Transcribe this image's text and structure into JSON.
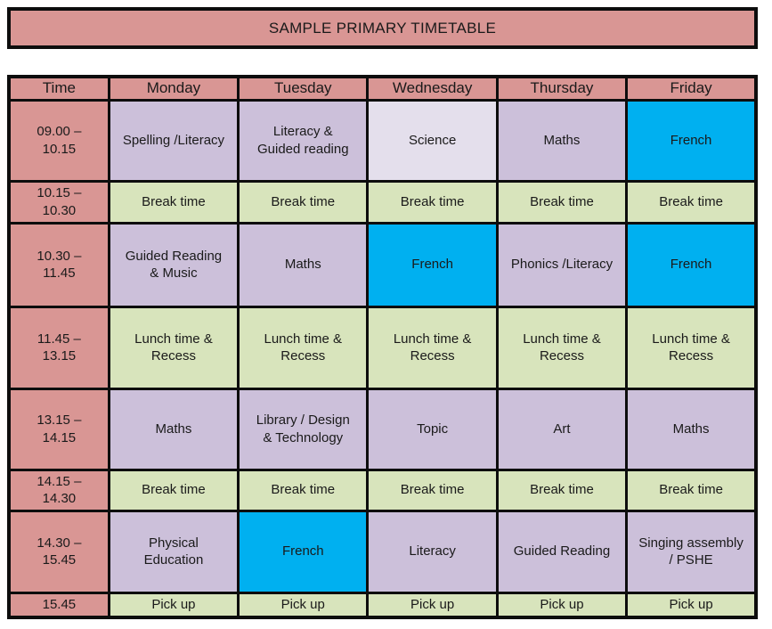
{
  "title": "SAMPLE PRIMARY TIMETABLE",
  "colors": {
    "header_bg": "#d99694",
    "time_bg": "#d99694",
    "lesson_bg": "#ccc0da",
    "lesson_light_bg": "#e4dfec",
    "break_bg": "#d8e4bc",
    "french_bg": "#00b0f0",
    "border": "#0d0d0d",
    "text": "#1a1a1a"
  },
  "table": {
    "columns": [
      "Time",
      "Monday",
      "Tuesday",
      "Wednesday",
      "Thursday",
      "Friday"
    ],
    "rows": [
      {
        "time": "09.00 –\n10.15",
        "cells": [
          {
            "text": "Spelling /Literacy",
            "type": "lesson"
          },
          {
            "text": "Literacy &\nGuided reading",
            "type": "lesson"
          },
          {
            "text": "Science",
            "type": "lesson-light"
          },
          {
            "text": "Maths",
            "type": "lesson"
          },
          {
            "text": "French",
            "type": "french"
          }
        ]
      },
      {
        "time": "10.15 –\n10.30",
        "cells": [
          {
            "text": "Break time",
            "type": "break"
          },
          {
            "text": "Break time",
            "type": "break"
          },
          {
            "text": "Break time",
            "type": "break"
          },
          {
            "text": "Break time",
            "type": "break"
          },
          {
            "text": "Break time",
            "type": "break"
          }
        ]
      },
      {
        "time": "10.30 –\n11.45",
        "cells": [
          {
            "text": "Guided Reading\n& Music",
            "type": "lesson"
          },
          {
            "text": "Maths",
            "type": "lesson"
          },
          {
            "text": "French",
            "type": "french"
          },
          {
            "text": "Phonics /Literacy",
            "type": "lesson"
          },
          {
            "text": "French",
            "type": "french"
          }
        ]
      },
      {
        "time": "11.45 –\n13.15",
        "cells": [
          {
            "text": "Lunch time &\nRecess",
            "type": "break"
          },
          {
            "text": "Lunch time &\nRecess",
            "type": "break"
          },
          {
            "text": "Lunch time &\nRecess",
            "type": "break"
          },
          {
            "text": "Lunch time &\nRecess",
            "type": "break"
          },
          {
            "text": "Lunch time &\nRecess",
            "type": "break"
          }
        ]
      },
      {
        "time": "13.15 –\n14.15",
        "cells": [
          {
            "text": "Maths",
            "type": "lesson"
          },
          {
            "text": "Library / Design\n& Technology",
            "type": "lesson"
          },
          {
            "text": "Topic",
            "type": "lesson"
          },
          {
            "text": "Art",
            "type": "lesson"
          },
          {
            "text": "Maths",
            "type": "lesson"
          }
        ]
      },
      {
        "time": "14.15 –\n14.30",
        "cells": [
          {
            "text": "Break time",
            "type": "break"
          },
          {
            "text": "Break time",
            "type": "break"
          },
          {
            "text": "Break time",
            "type": "break"
          },
          {
            "text": "Break time",
            "type": "break"
          },
          {
            "text": "Break time",
            "type": "break"
          }
        ]
      },
      {
        "time": "14.30 –\n15.45",
        "cells": [
          {
            "text": "Physical\nEducation",
            "type": "lesson"
          },
          {
            "text": "French",
            "type": "french"
          },
          {
            "text": "Literacy",
            "type": "lesson"
          },
          {
            "text": "Guided Reading",
            "type": "lesson"
          },
          {
            "text": "Singing assembly\n/ PSHE",
            "type": "lesson"
          }
        ]
      },
      {
        "time": "15.45",
        "cells": [
          {
            "text": "Pick up",
            "type": "break"
          },
          {
            "text": "Pick up",
            "type": "break"
          },
          {
            "text": "Pick up",
            "type": "break"
          },
          {
            "text": "Pick up",
            "type": "break"
          },
          {
            "text": "Pick up",
            "type": "break"
          }
        ]
      }
    ]
  }
}
